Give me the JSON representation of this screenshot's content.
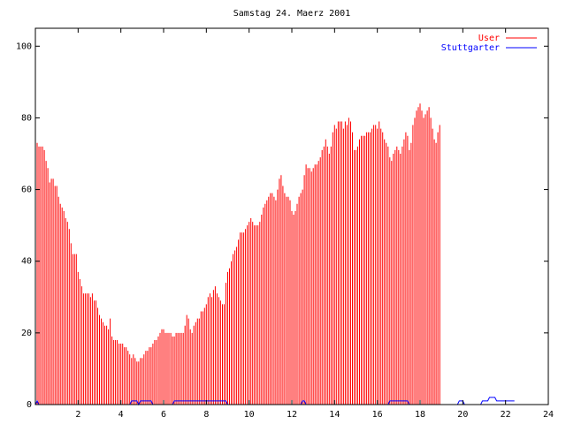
{
  "chart_data": {
    "type": "bar",
    "title": "Samstag 24. Maerz 2001",
    "xlabel": "",
    "ylabel": "",
    "xlim": [
      0,
      24
    ],
    "ylim": [
      0,
      105
    ],
    "x_ticks": [
      "2",
      "4",
      "6",
      "8",
      "10",
      "12",
      "14",
      "16",
      "18",
      "20",
      "22",
      "24"
    ],
    "y_ticks": [
      "0",
      "20",
      "40",
      "60",
      "80",
      "100"
    ],
    "grid": false,
    "legend_position": "top-right",
    "colors": {
      "User": "#ff0000",
      "Stuttgarter": "#0000ff",
      "axis": "#000000"
    },
    "series": [
      {
        "name": "User",
        "style": "impulses",
        "sample_minutes": 5,
        "values": [
          78,
          73,
          72,
          72,
          72,
          71,
          68,
          66,
          62,
          63,
          63,
          61,
          61,
          58,
          56,
          55,
          54,
          52,
          51,
          49,
          45,
          42,
          42,
          42,
          37,
          35,
          33,
          31,
          31,
          31,
          31,
          30,
          31,
          29,
          29,
          27,
          25,
          24,
          23,
          22,
          22,
          21,
          24,
          19,
          18,
          18,
          18,
          17,
          17,
          17,
          16,
          16,
          15,
          14,
          13,
          14,
          13,
          12,
          12,
          13,
          13,
          14,
          15,
          15,
          16,
          16,
          17,
          18,
          18,
          19,
          20,
          21,
          21,
          20,
          20,
          20,
          20,
          19,
          19,
          20,
          20,
          20,
          20,
          20,
          22,
          25,
          24,
          21,
          20,
          22,
          23,
          24,
          24,
          26,
          26,
          27,
          28,
          30,
          31,
          30,
          32,
          33,
          31,
          30,
          29,
          28,
          28,
          34,
          37,
          38,
          40,
          42,
          43,
          44,
          46,
          48,
          48,
          48,
          49,
          50,
          51,
          52,
          51,
          50,
          50,
          50,
          51,
          53,
          55,
          56,
          57,
          58,
          59,
          59,
          58,
          57,
          60,
          63,
          64,
          61,
          59,
          58,
          58,
          57,
          54,
          53,
          54,
          56,
          58,
          59,
          60,
          64,
          67,
          66,
          66,
          65,
          66,
          67,
          67,
          68,
          69,
          71,
          72,
          74,
          72,
          70,
          72,
          76,
          78,
          77,
          79,
          79,
          79,
          77,
          79,
          78,
          80,
          79,
          76,
          71,
          71,
          72,
          74,
          75,
          75,
          75,
          76,
          76,
          76,
          77,
          78,
          78,
          77,
          79,
          77,
          76,
          74,
          73,
          72,
          69,
          68,
          70,
          71,
          72,
          71,
          70,
          72,
          74,
          76,
          75,
          71,
          73,
          78,
          80,
          82,
          83,
          84,
          82,
          80,
          81,
          82,
          83,
          80,
          77,
          74,
          73,
          76,
          78
        ]
      },
      {
        "name": "Stuttgarter",
        "style": "line",
        "sample_minutes": 5,
        "values": [
          0,
          1,
          0,
          0,
          0,
          0,
          0,
          0,
          0,
          0,
          0,
          0,
          0,
          0,
          0,
          0,
          0,
          0,
          0,
          0,
          0,
          0,
          0,
          0,
          0,
          0,
          0,
          0,
          0,
          0,
          0,
          0,
          0,
          0,
          0,
          0,
          0,
          0,
          0,
          0,
          0,
          0,
          0,
          0,
          0,
          0,
          0,
          0,
          0,
          0,
          0,
          0,
          0,
          0,
          1,
          1,
          1,
          1,
          0,
          1,
          1,
          1,
          1,
          1,
          1,
          1,
          0,
          0,
          0,
          0,
          0,
          0,
          0,
          0,
          0,
          0,
          0,
          0,
          1,
          1,
          1,
          1,
          1,
          1,
          1,
          1,
          1,
          1,
          1,
          1,
          1,
          1,
          1,
          1,
          1,
          1,
          1,
          1,
          1,
          1,
          1,
          1,
          1,
          1,
          1,
          1,
          1,
          1,
          0,
          0,
          0,
          0,
          0,
          0,
          0,
          0,
          0,
          0,
          0,
          0,
          0,
          0,
          0,
          0,
          0,
          0,
          0,
          0,
          0,
          0,
          0,
          0,
          0,
          0,
          0,
          0,
          0,
          0,
          0,
          0,
          0,
          0,
          0,
          0,
          0,
          0,
          0,
          0,
          0,
          0,
          1,
          1,
          0,
          0,
          0,
          0,
          0,
          0,
          0,
          0,
          0,
          0,
          0,
          0,
          0,
          0,
          0,
          0,
          0,
          0,
          0,
          0,
          0,
          0,
          0,
          0,
          0,
          0,
          0,
          0,
          0,
          0,
          0,
          0,
          0,
          0,
          0,
          0,
          0,
          0,
          0,
          0,
          0,
          0,
          0,
          0,
          0,
          0,
          0,
          1,
          1,
          1,
          1,
          1,
          1,
          1,
          1,
          1,
          1,
          1,
          0,
          0,
          0,
          0,
          0,
          0,
          0,
          0,
          0,
          0,
          0,
          0,
          0,
          0,
          0,
          0,
          0,
          0,
          0,
          0,
          0,
          0,
          0,
          0,
          0,
          0,
          0,
          0,
          1,
          1,
          1,
          0,
          0,
          0,
          0,
          0,
          0,
          0,
          0,
          0,
          0,
          1,
          1,
          1,
          1,
          2,
          2,
          2,
          2,
          1,
          1,
          1,
          1,
          1,
          1,
          1,
          1,
          1,
          1,
          1
        ]
      }
    ]
  }
}
